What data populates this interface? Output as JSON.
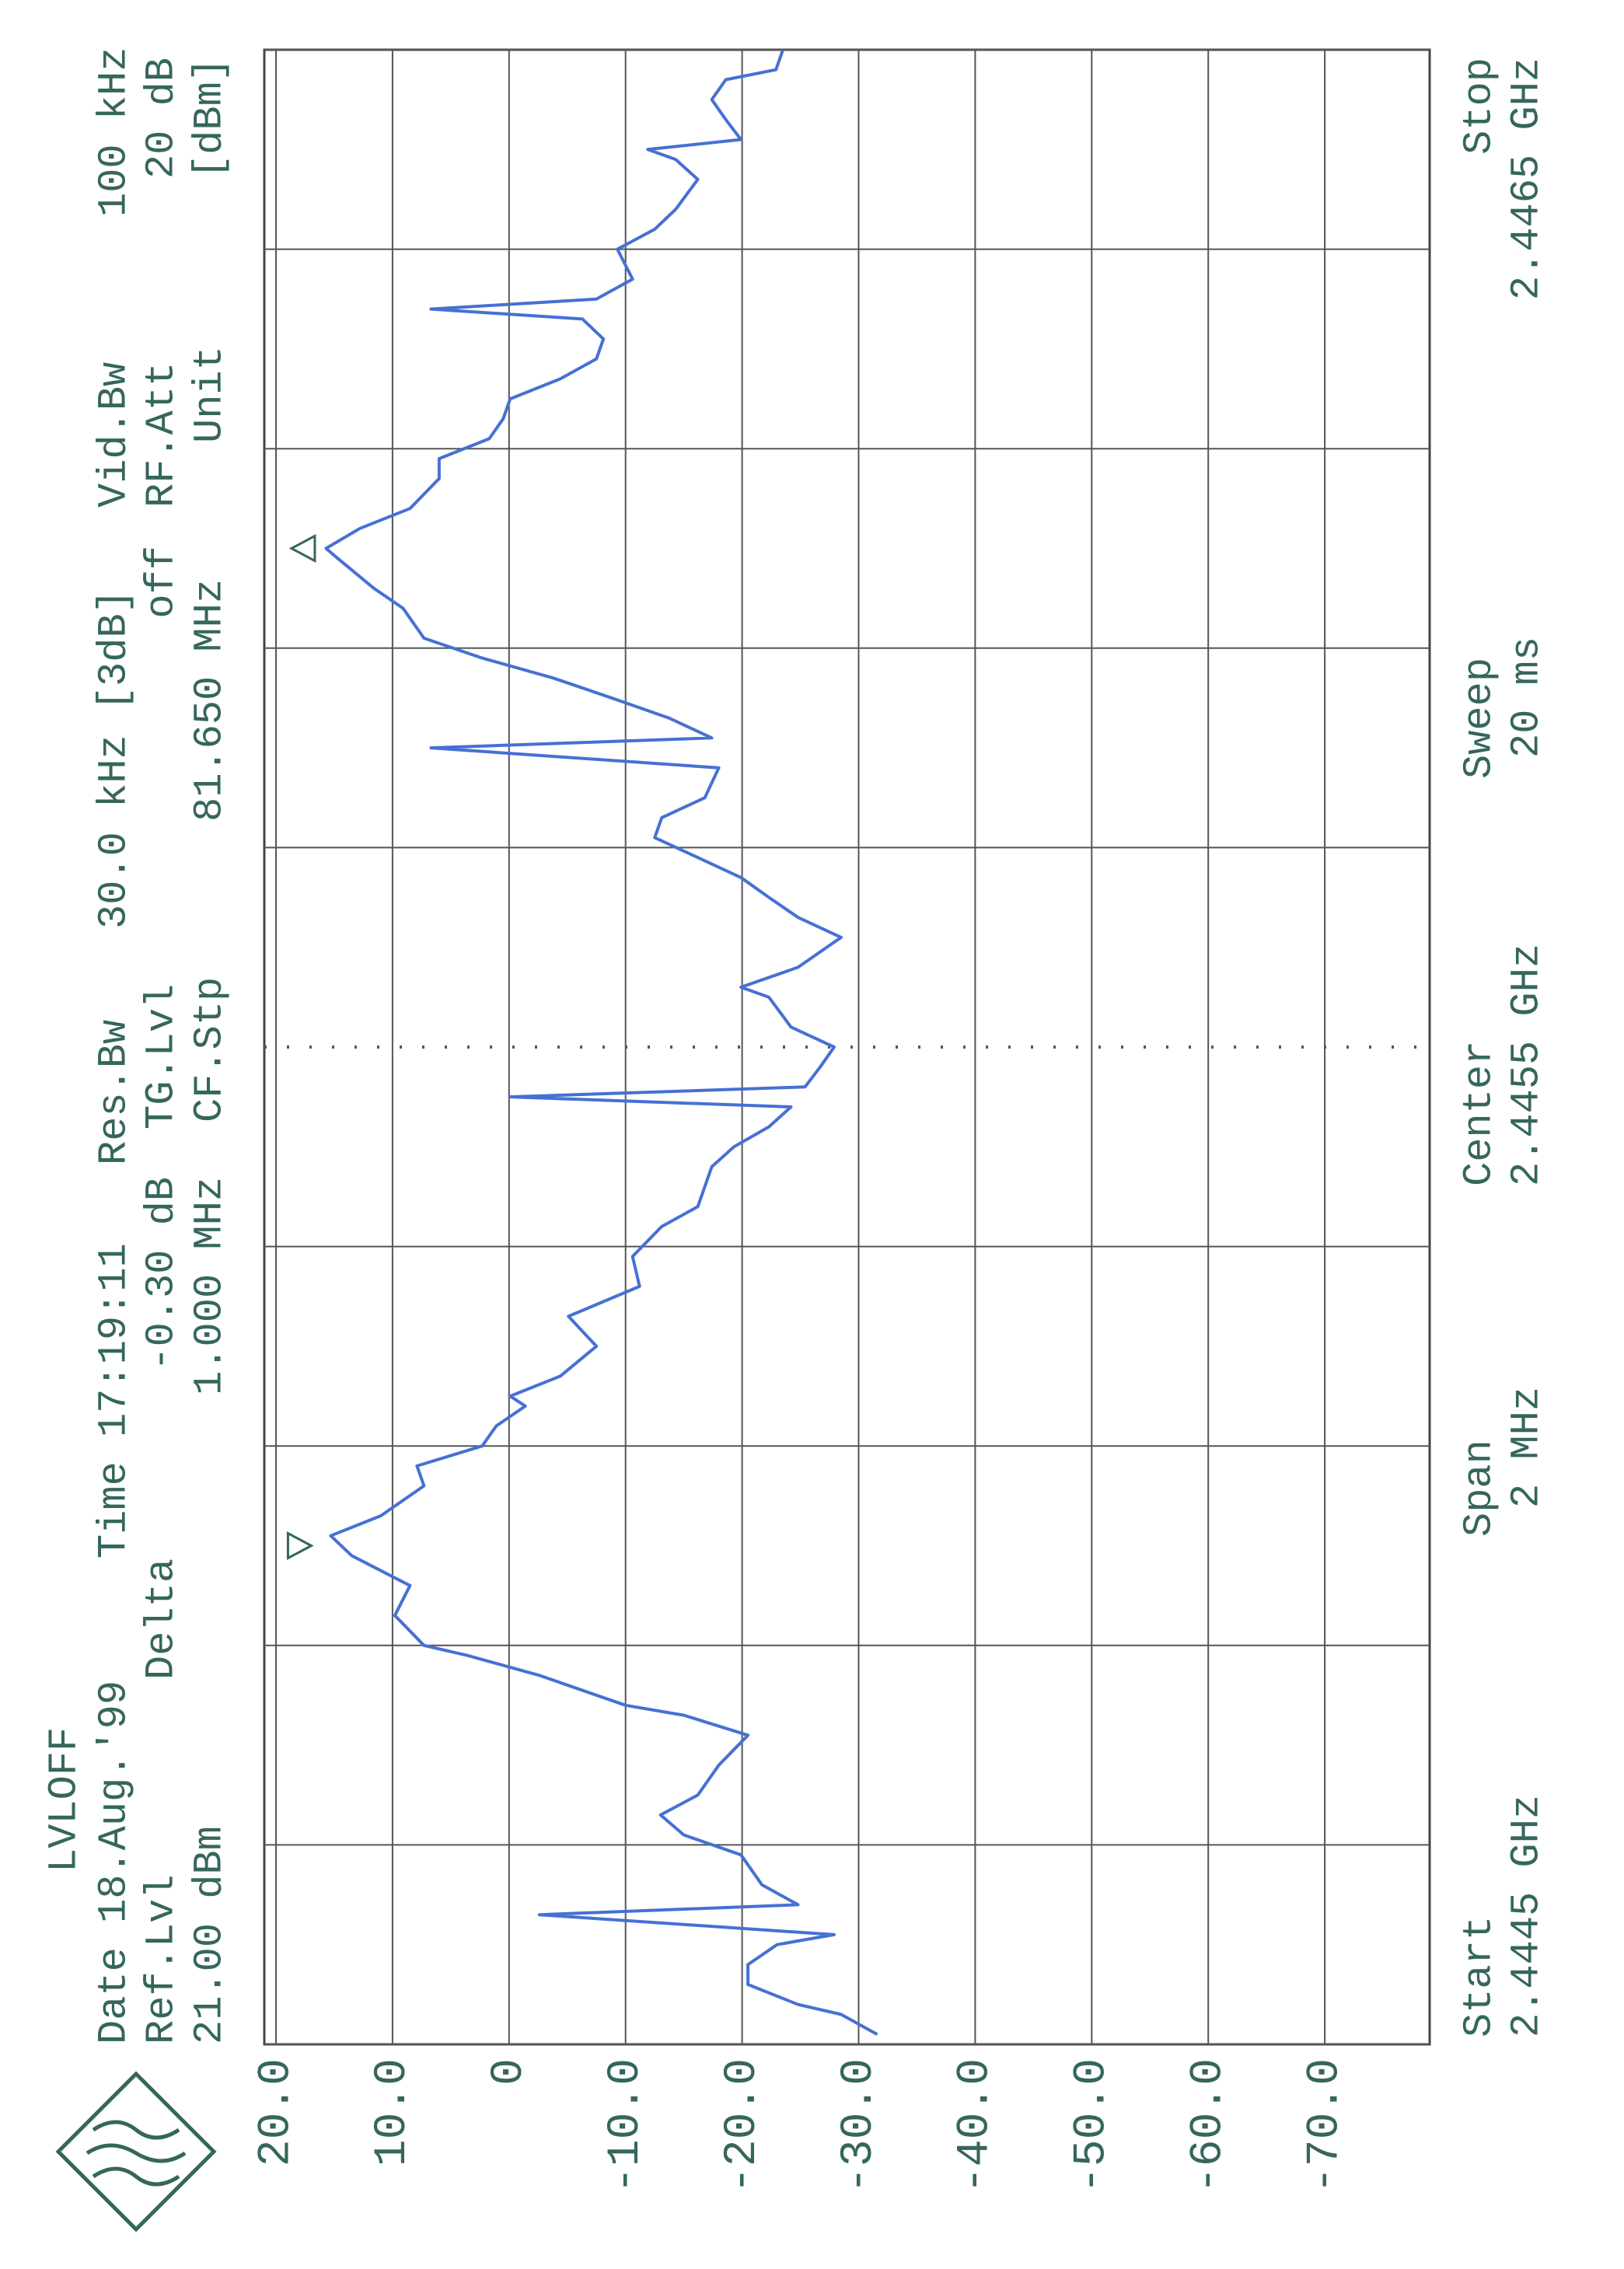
{
  "chart_data": {
    "type": "line",
    "header": [
      "LVLOFF",
      "Date 18.Aug.'99",
      "Time 17:19:11",
      "Ref.Lvl",
      "21.00 dBm",
      "Delta",
      "-0.30 dB",
      "1.000 MHz",
      "Res.Bw",
      "TG.Lvl",
      "CF.Stp",
      "30.0 kHz [3dB]",
      "off",
      "81.650 MHz",
      "Vid.Bw",
      "RF.Att",
      "Unit",
      "100 kHz",
      "20 dB",
      "[dBm]"
    ],
    "footer": [
      "Start",
      "2.4445 GHz",
      "Span",
      "2 MHz",
      "Center",
      "2.4455 GHz",
      "Sweep",
      "20 ms",
      "Stop",
      "2.4465 GHz"
    ],
    "xlim": [
      2.4445,
      2.4465
    ],
    "xticks": [
      2.4445,
      2.4447,
      2.4449,
      2.4451,
      2.4453,
      2.4455,
      2.4457,
      2.4459,
      2.4461,
      2.4463,
      2.4465
    ],
    "ylim": [
      -79,
      21
    ],
    "yticks": [
      {
        "value": 20,
        "label": "20.0"
      },
      {
        "value": 10,
        "label": "10.0"
      },
      0,
      {
        "value": -10,
        "label": "-10.0"
      },
      {
        "value": -20,
        "label": "-20.0"
      },
      {
        "value": -30,
        "label": "-30.0"
      },
      {
        "value": -40,
        "label": "-40.0"
      },
      {
        "value": -50,
        "label": "-50.0"
      },
      {
        "value": -60,
        "label": "-60.0"
      },
      {
        "value": -70,
        "label": "-70.0"
      }
    ],
    "grid": true,
    "x": [
      2.44451,
      2.44453,
      2.44454,
      2.44456,
      2.44458,
      2.4446,
      2.44461,
      2.44463,
      2.44464,
      2.44466,
      2.44469,
      2.44471,
      2.44473,
      2.44475,
      2.44478,
      2.44481,
      2.44483,
      2.44484,
      2.44487,
      2.44489,
      2.4449,
      2.44493,
      2.44496,
      2.44499,
      2.44501,
      2.44503,
      2.44506,
      2.44508,
      2.4451,
      2.44512,
      2.44514,
      2.44515,
      2.44517,
      2.4452,
      2.44523,
      2.44526,
      2.44529,
      2.44532,
      2.44534,
      2.44536,
      2.44538,
      2.4454,
      2.44542,
      2.44544,
      2.44545,
      2.44546,
      2.44548,
      2.4455,
      2.44552,
      2.44555,
      2.44556,
      2.44558,
      2.44561,
      2.44563,
      2.44565,
      2.44567,
      2.44569,
      2.44571,
      2.44573,
      2.44575,
      2.44578,
      2.4458,
      2.44581,
      2.44583,
      2.44585,
      2.44587,
      2.44589,
      2.44591,
      2.44594,
      2.44596,
      2.44599,
      2.446,
      2.44602,
      2.44604,
      2.44607,
      2.44609,
      2.44611,
      2.44613,
      2.44615,
      2.44617,
      2.44619,
      2.44621,
      2.44623,
      2.44624,
      2.44625,
      2.44627,
      2.4463,
      2.44632,
      2.44634,
      2.44637,
      2.44639,
      2.4464,
      2.44641,
      2.44643,
      2.44645,
      2.44647,
      2.44648,
      2.4465
    ],
    "series": [
      {
        "color": "#4670d4",
        "values": [
          -31.6,
          -28.5,
          -24.8,
          -20.5,
          -20.5,
          -23,
          -27.9,
          -2.6,
          -24.8,
          -21.7,
          -19.9,
          -15,
          -13,
          -16.2,
          -18,
          -20.5,
          -15,
          -10,
          -2.6,
          3.6,
          7.3,
          9.8,
          8.5,
          13.5,
          15.3,
          11,
          7.3,
          7.9,
          2.3,
          1.1,
          -1.4,
          -0.1,
          -4.4,
          -7.5,
          -5.1,
          -11.2,
          -10.6,
          -13.1,
          -16.2,
          -16.8,
          -17.4,
          -19.3,
          -22.3,
          -24.2,
          -0.1,
          -25.4,
          -26.7,
          -27.9,
          -24.2,
          -22.3,
          -19.9,
          -24.8,
          -28.5,
          -24.8,
          -22.3,
          -19.9,
          -16.2,
          -12.5,
          -13.1,
          -16.8,
          -18,
          6.7,
          -17.4,
          -13.7,
          -8.8,
          -3.8,
          2.3,
          7.3,
          9.1,
          11.6,
          14.7,
          15.7,
          12.8,
          8.5,
          6,
          6,
          1.7,
          0.5,
          -0.1,
          -4.4,
          -7.5,
          -8.1,
          -6.3,
          6.7,
          -7.5,
          -10.6,
          -9.3,
          -12.5,
          -14.3,
          -16.2,
          -14.3,
          -11.9,
          -19.9,
          -18.6,
          -17.4,
          -18.6,
          -22.9,
          -23.5
        ]
      }
    ],
    "markers": [
      {
        "x": 2.445,
        "value": 15.5
      },
      {
        "x": 2.446,
        "value": 15.2
      }
    ]
  }
}
